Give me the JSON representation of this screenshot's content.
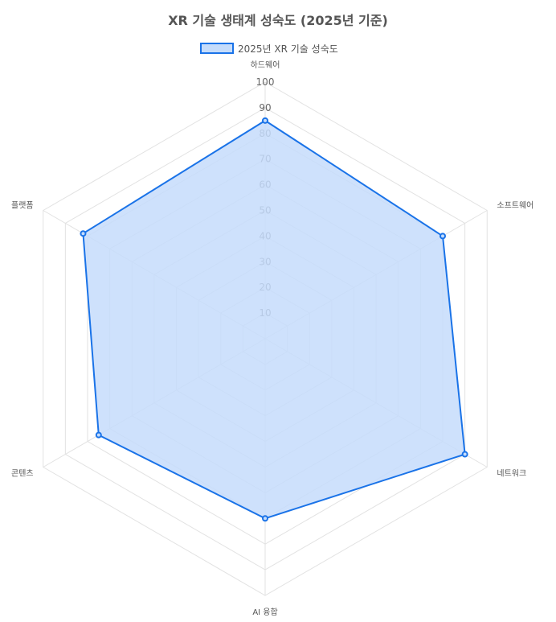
{
  "chart_data": {
    "type": "radar",
    "title": "XR 기술 생태계 성숙도 (2025년 기준)",
    "labels": [
      "하드웨어",
      "소프트웨어",
      "네트워크",
      "AI 융합",
      "콘텐츠",
      "플랫폼"
    ],
    "series": [
      {
        "name": "2025년 XR 기술 성숙도",
        "values": [
          85,
          80,
          90,
          70,
          75,
          82
        ],
        "border_color": "#1a73e8",
        "fill_color": "#c5dcfb"
      }
    ],
    "r_min": 0,
    "r_max": 100,
    "ticks": [
      10,
      20,
      30,
      40,
      50,
      60,
      70,
      80,
      90,
      100
    ],
    "grid": true,
    "legend_position": "top"
  }
}
